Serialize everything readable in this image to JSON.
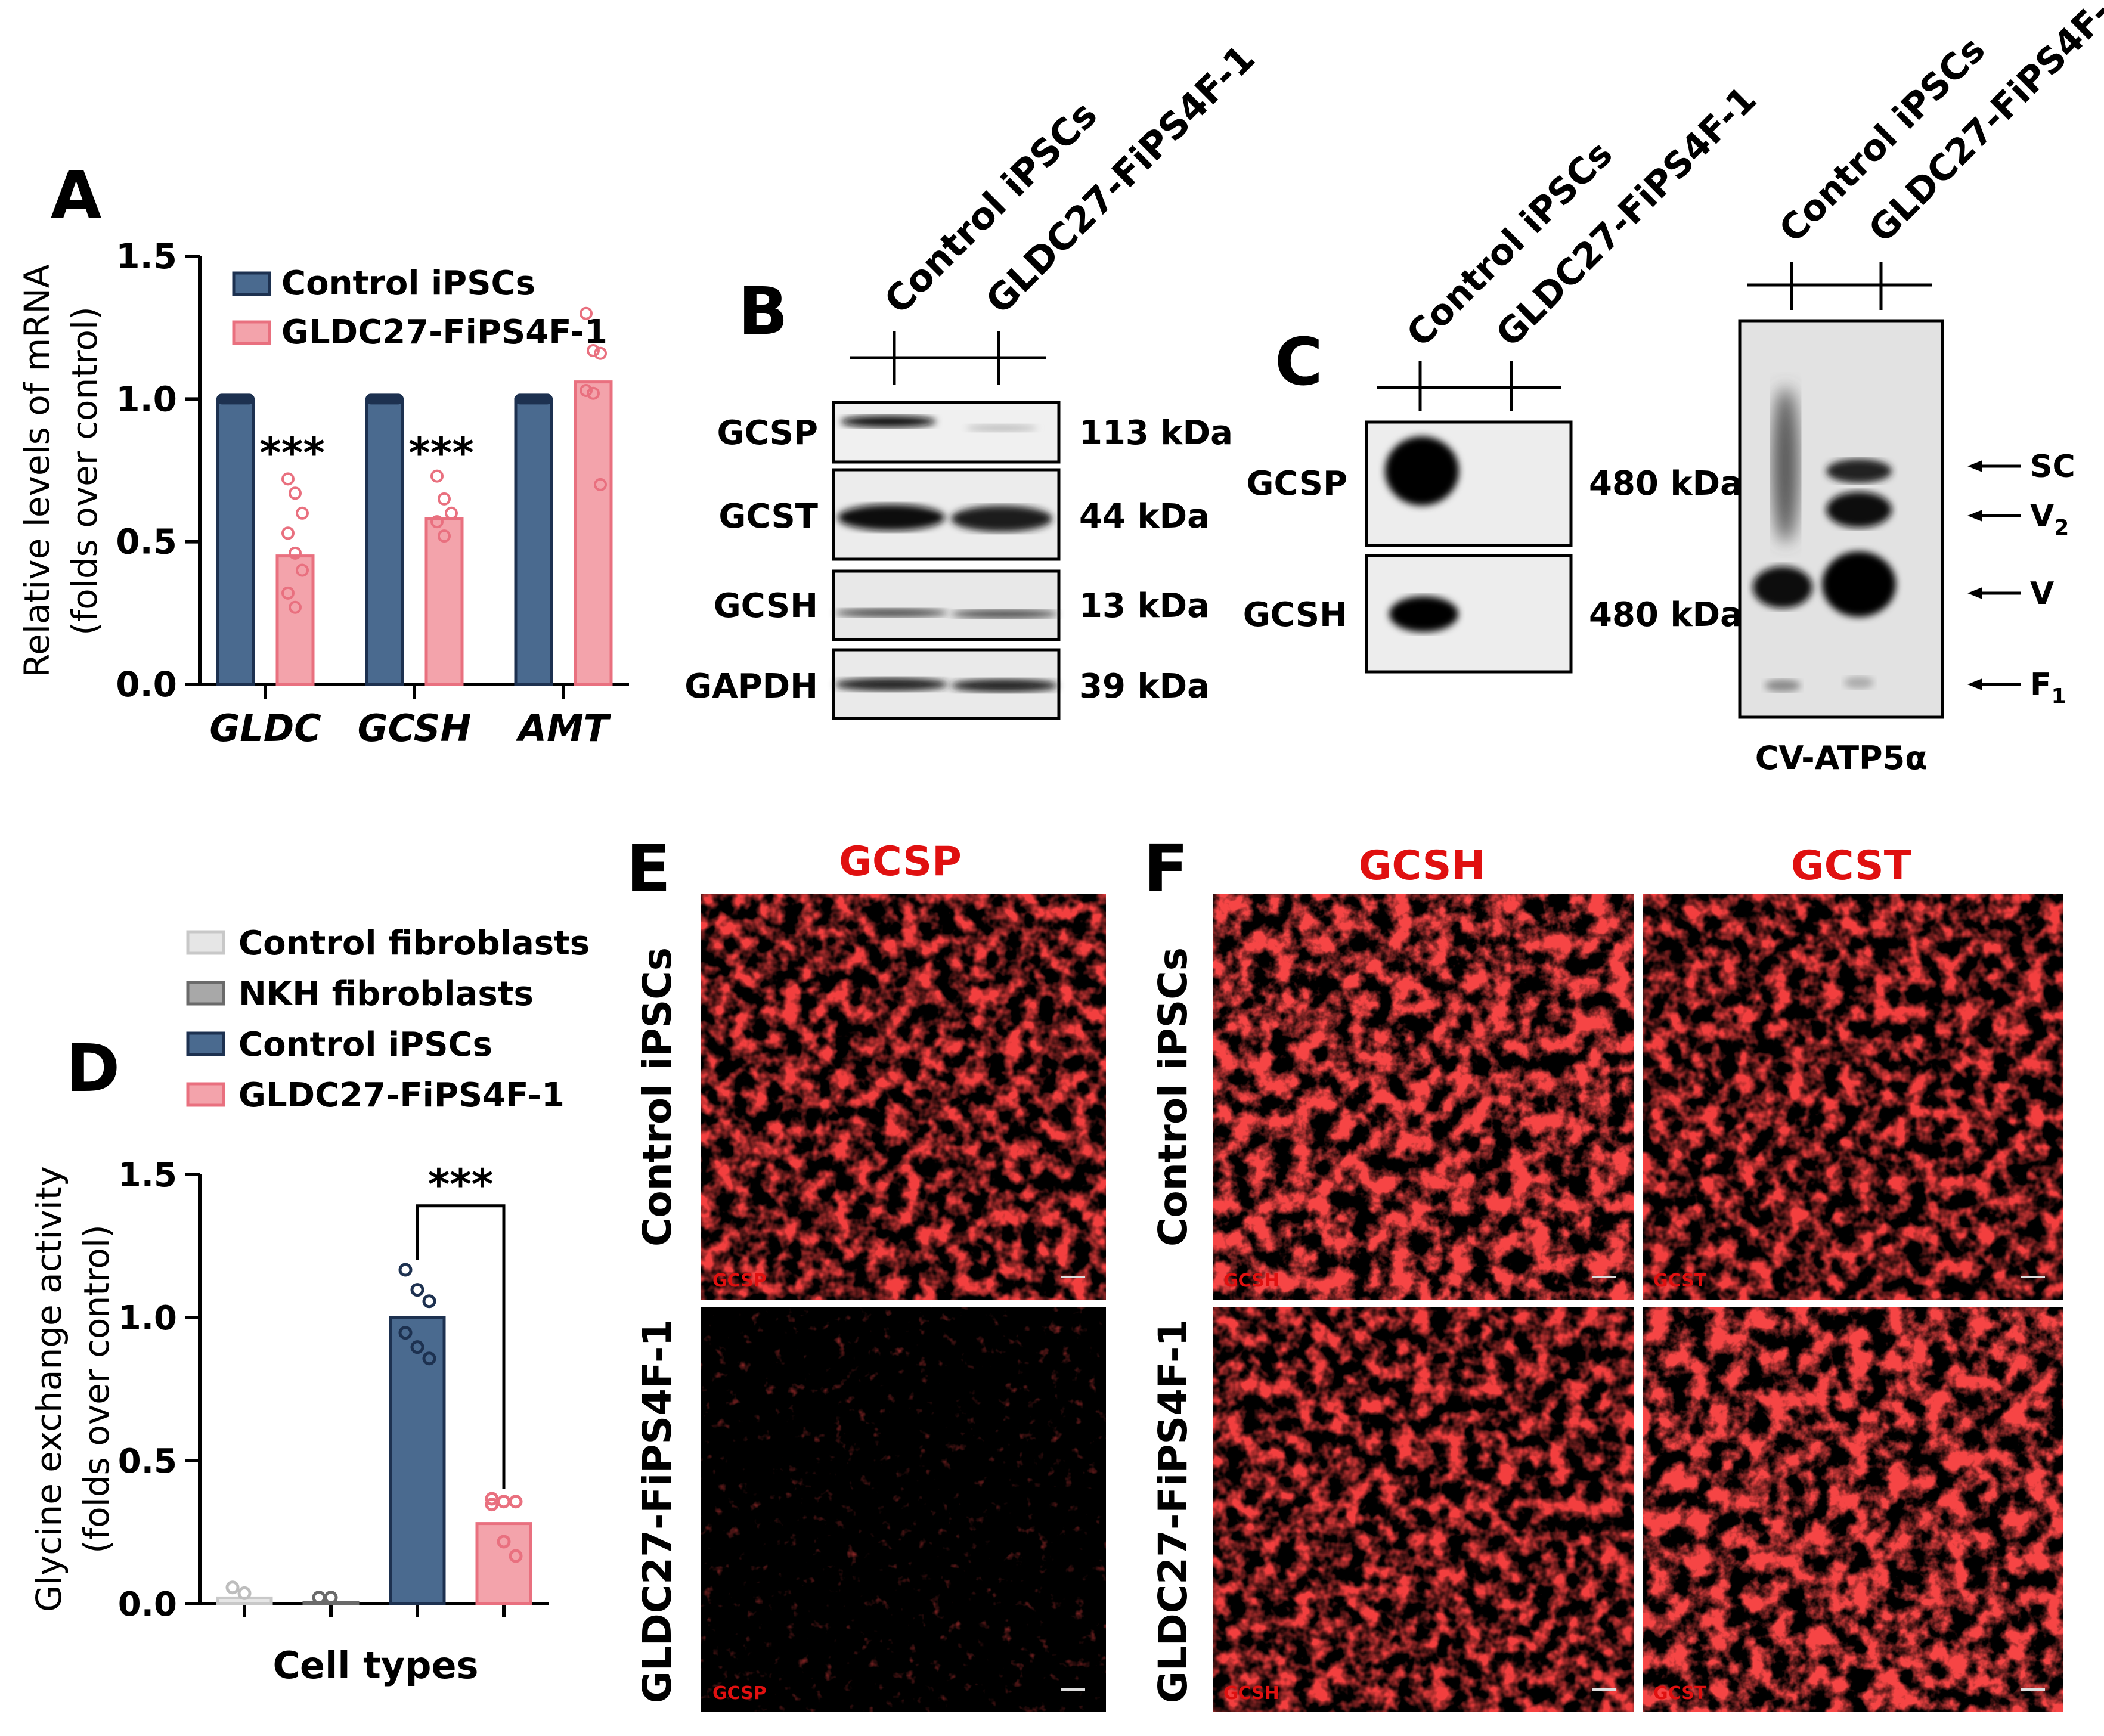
{
  "panels": {
    "a": "A",
    "b": "B",
    "c": "C",
    "d": "D",
    "e": "E",
    "f": "F"
  },
  "colors": {
    "control_ipsc": "#4a6a8f",
    "control_ipsc_edge": "#1d3150",
    "patient": "#f3a3ab",
    "patient_edge": "#e9707f",
    "control_fibro": "#e6e6e6",
    "nkh_fibro": "#a8a8a8",
    "fluor_red": "#e01010"
  },
  "chart_data": [
    {
      "panel": "A",
      "type": "bar",
      "ylabel_line1": "Relative levels of mRNA",
      "ylabel_line2": "(folds over control)",
      "ylim": [
        0,
        1.5
      ],
      "yticks": [
        "0.0",
        "0.5",
        "1.0",
        "1.5"
      ],
      "categories": [
        "GLDC",
        "GCSH",
        "AMT"
      ],
      "series": [
        {
          "name": "Control iPSCs",
          "values": [
            1.0,
            1.0,
            1.0
          ],
          "points": [
            [
              1.0
            ],
            [
              1.0
            ],
            [
              1.0
            ]
          ]
        },
        {
          "name": "GLDC27-FiPS4F-1",
          "values": [
            0.45,
            0.58,
            1.06
          ],
          "points": [
            [
              0.72,
              0.67,
              0.6,
              0.53,
              0.46,
              0.4,
              0.32,
              0.27
            ],
            [
              0.73,
              0.65,
              0.6,
              0.57,
              0.52
            ],
            [
              1.3,
              1.17,
              1.16,
              1.03,
              1.02,
              0.7
            ]
          ]
        }
      ],
      "annotations": [
        "***",
        "***"
      ],
      "legend_position": "top"
    },
    {
      "panel": "D",
      "type": "bar",
      "xlabel": "Cell types",
      "ylabel_line1": "Glycine exchange activity",
      "ylabel_line2": "(folds over control)",
      "ylim": [
        0,
        1.5
      ],
      "yticks": [
        "0.0",
        "0.5",
        "1.0",
        "1.5"
      ],
      "categories": [
        "Control fibroblasts",
        "NKH fibroblasts",
        "Control iPSCs",
        "GLDC27-FiPS4F-1"
      ],
      "values": [
        0.02,
        0.005,
        1.0,
        0.28
      ],
      "points": [
        [
          0.04,
          0.02
        ],
        [
          0.005,
          0.005
        ],
        [
          1.15,
          1.08,
          1.04,
          0.93,
          0.88,
          0.84
        ],
        [
          0.35,
          0.34,
          0.34,
          0.33,
          0.2,
          0.15
        ]
      ],
      "significance": "***",
      "legend_position": "top-left"
    }
  ],
  "panel_b": {
    "lanes": [
      "Control iPSCs",
      "GLDC27-FiPS4F-1"
    ],
    "rows": [
      {
        "label": "GCSP",
        "size": "113 kDa"
      },
      {
        "label": "GCST",
        "size": "44 kDa"
      },
      {
        "label": "GCSH",
        "size": "13 kDa"
      },
      {
        "label": "GAPDH",
        "size": "39 kDa"
      }
    ]
  },
  "panel_c": {
    "lanes": [
      "Control iPSCs",
      "GLDC27-FiPS4F-1"
    ],
    "rows": [
      {
        "label": "GCSP",
        "size": "480 kDa"
      },
      {
        "label": "GCSH",
        "size": "480 kDa"
      }
    ],
    "complex_label": "CV-ATP5α",
    "markers": [
      {
        "text": "SC",
        "sub": ""
      },
      {
        "text": "V",
        "sub": "2"
      },
      {
        "text": "V",
        "sub": ""
      },
      {
        "text": "F",
        "sub": "1"
      }
    ]
  },
  "panel_e": {
    "column_title": "GCSP",
    "row_labels": [
      "Control iPSCs",
      "GLDC27-FiPS4F-1"
    ],
    "image_tags": [
      "GCSP",
      "GCSP"
    ]
  },
  "panel_f": {
    "column_titles": [
      "GCSH",
      "GCST"
    ],
    "row_labels": [
      "Control iPSCs",
      "GLDC27-FiPS4F-1"
    ],
    "image_tags": [
      "GCSH",
      "GCST",
      "GCSH",
      "GCST"
    ]
  }
}
